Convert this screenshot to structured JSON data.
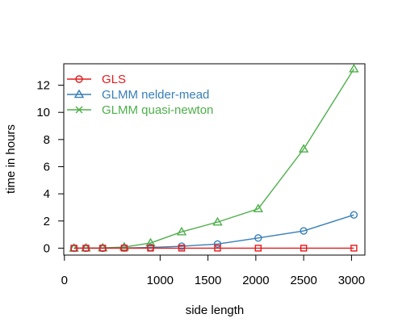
{
  "chart_data": {
    "type": "line",
    "title": "",
    "xlabel": "side length",
    "ylabel": "time in hours",
    "xlim": [
      0,
      3100
    ],
    "ylim": [
      0,
      13.2
    ],
    "x_ticks": [
      0,
      1000,
      1500,
      2000,
      2500,
      3000
    ],
    "y_ticks": [
      0,
      2,
      4,
      6,
      8,
      10,
      12
    ],
    "legend_position": "top-left",
    "grid": false,
    "x": [
      100,
      225,
      400,
      625,
      900,
      1225,
      1600,
      2025,
      2500,
      3025
    ],
    "series": [
      {
        "name": "GLS",
        "marker": "circle",
        "color": "#E41A1C",
        "values": [
          0.0,
          0.0,
          0.0,
          0.0,
          0.0,
          0.0,
          0.0,
          0.0,
          0.0,
          0.0
        ]
      },
      {
        "name": "GLMM nelder-mead",
        "marker": "triangle",
        "color": "#377EB8",
        "values": [
          0.0,
          0.0,
          0.0,
          0.01,
          0.05,
          0.14,
          0.3,
          0.75,
          1.27,
          2.45
        ]
      },
      {
        "name": "GLMM quasi-newton",
        "marker": "cross",
        "color": "#4DAF4A",
        "values": [
          0.0,
          0.01,
          0.02,
          0.08,
          0.38,
          1.2,
          1.92,
          2.9,
          7.3,
          13.2
        ]
      }
    ]
  }
}
